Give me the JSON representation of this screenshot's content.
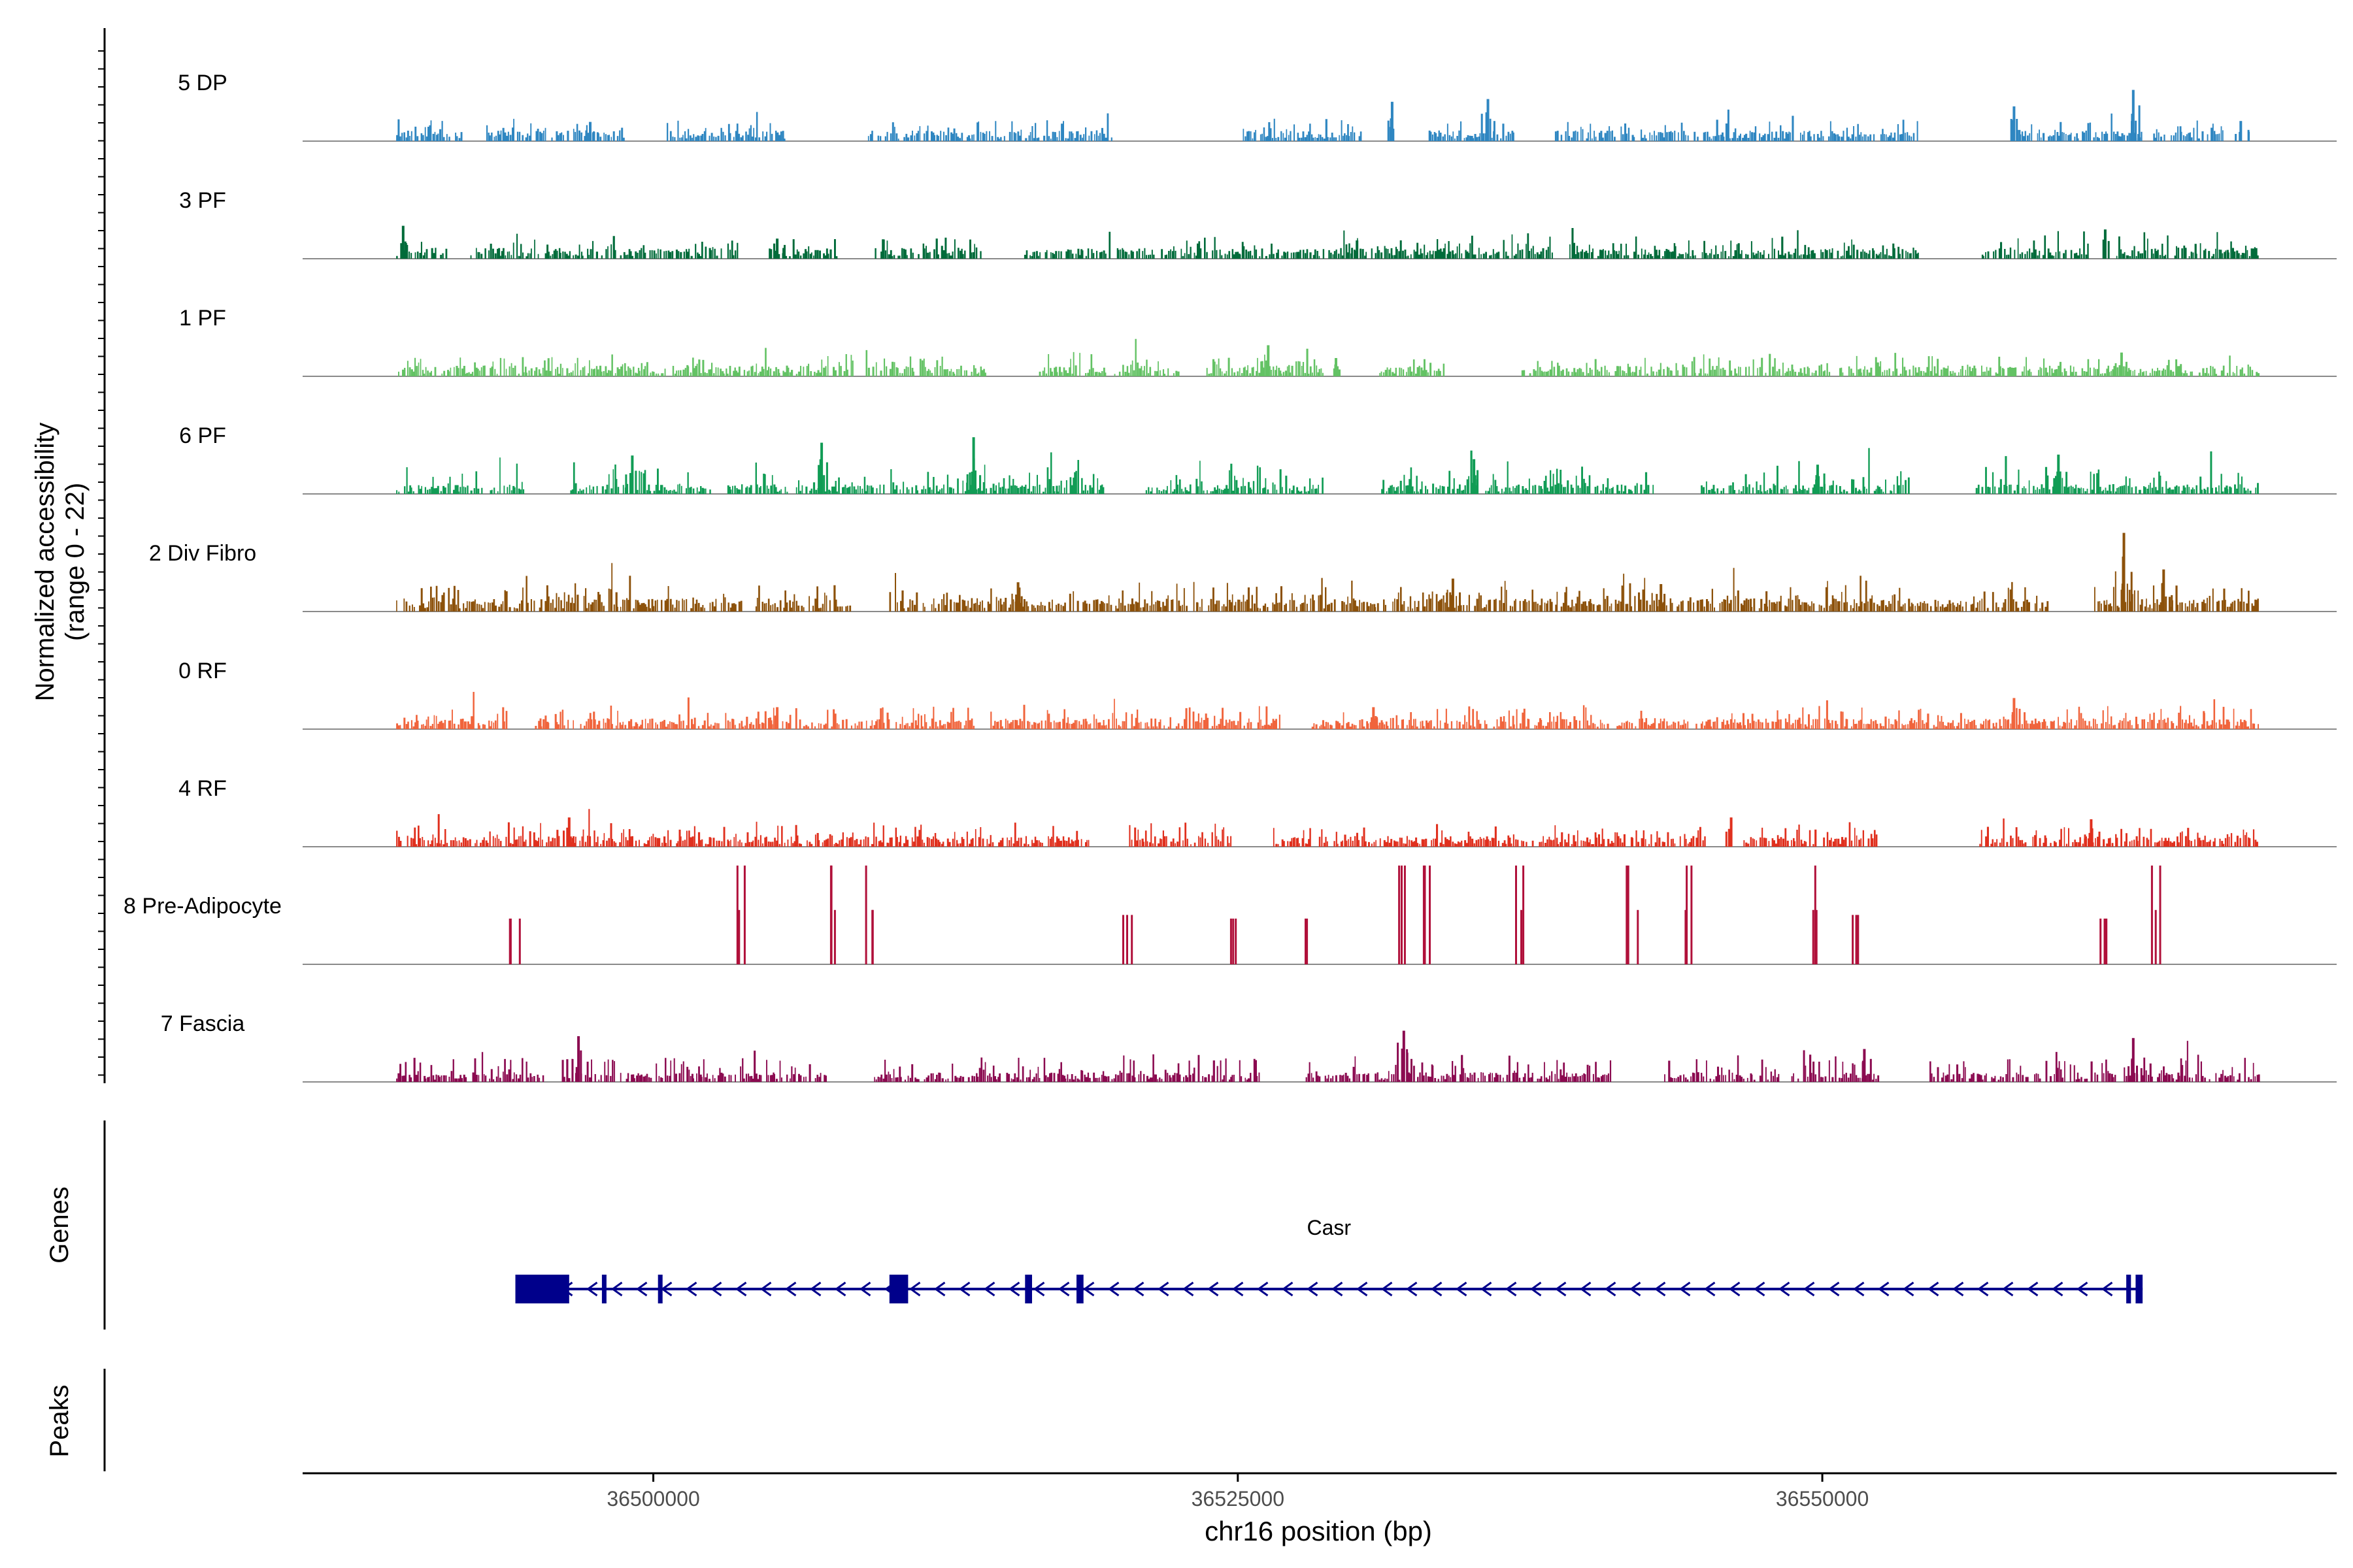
{
  "chart_data": {
    "type": "area",
    "title": "",
    "ylabel": [
      "Normalized accessibility",
      "(range 0 - 22)"
    ],
    "ylim": [
      0,
      22
    ],
    "xlabel": "chr16 position (bp)",
    "xlim": [
      36485000,
      36572000
    ],
    "x_ticks": [
      {
        "value": 36500000,
        "label": "36500000"
      },
      {
        "value": 36525000,
        "label": "36525000"
      },
      {
        "value": 36550000,
        "label": "36550000"
      }
    ],
    "data_range": [
      36489000,
      36573000
    ],
    "series": [
      {
        "name": "5 DP",
        "color": "#2E86C1",
        "profile": "sparse-low",
        "peaks": [
          {
            "x": 36497300,
            "y": 2.1
          },
          {
            "x": 36531600,
            "y": 4.3
          },
          {
            "x": 36535700,
            "y": 4.6
          },
          {
            "x": 36558200,
            "y": 3.8
          },
          {
            "x": 36563300,
            "y": 5.6
          },
          {
            "x": 36567900,
            "y": 2.2
          }
        ]
      },
      {
        "name": "3 PF",
        "color": "#006B3A",
        "profile": "dense-low",
        "peaks": [
          {
            "x": 36489300,
            "y": 3.6
          },
          {
            "x": 36505300,
            "y": 2.2
          },
          {
            "x": 36530100,
            "y": 2.0
          },
          {
            "x": 36562100,
            "y": 3.2
          }
        ]
      },
      {
        "name": "1 PF",
        "color": "#63C264",
        "profile": "dense-low",
        "peaks": [
          {
            "x": 36526300,
            "y": 3.4
          },
          {
            "x": 36529200,
            "y": 2.0
          },
          {
            "x": 36562800,
            "y": 2.6
          }
        ]
      },
      {
        "name": "6 PF",
        "color": "#119C55",
        "profile": "mixed",
        "peaks": [
          {
            "x": 36499100,
            "y": 4.2
          },
          {
            "x": 36507200,
            "y": 5.6
          },
          {
            "x": 36513700,
            "y": 6.2
          },
          {
            "x": 36535100,
            "y": 3.8
          },
          {
            "x": 36549800,
            "y": 3.2
          },
          {
            "x": 36560100,
            "y": 4.3
          }
        ]
      },
      {
        "name": "2 Div Fibro",
        "color": "#8C510A",
        "profile": "dense-mid",
        "peaks": [
          {
            "x": 36515600,
            "y": 3.2
          },
          {
            "x": 36534200,
            "y": 3.6
          },
          {
            "x": 36543100,
            "y": 3.0
          },
          {
            "x": 36562900,
            "y": 8.6
          },
          {
            "x": 36564600,
            "y": 4.6
          }
        ]
      },
      {
        "name": "0 RF",
        "color": "#F0643C",
        "profile": "dense-low",
        "peaks": [
          {
            "x": 36505300,
            "y": 2.4
          },
          {
            "x": 36530800,
            "y": 2.4
          },
          {
            "x": 36558200,
            "y": 3.4
          }
        ]
      },
      {
        "name": "4 RF",
        "color": "#E0301E",
        "profile": "dense-low",
        "peaks": [
          {
            "x": 36496400,
            "y": 3.2
          },
          {
            "x": 36546100,
            "y": 3.2
          },
          {
            "x": 36561500,
            "y": 3.0
          }
        ]
      },
      {
        "name": "8 Pre-Adipocyte",
        "color": "#B0103A",
        "profile": "spikes",
        "peaks": [
          {
            "x": 36493900,
            "y": 5.0
          },
          {
            "x": 36503600,
            "y": 10.8
          },
          {
            "x": 36507600,
            "y": 10.8
          },
          {
            "x": 36509100,
            "y": 10.8
          },
          {
            "x": 36520100,
            "y": 5.4
          },
          {
            "x": 36524800,
            "y": 5.0
          },
          {
            "x": 36527900,
            "y": 5.0
          },
          {
            "x": 36531900,
            "y": 10.8
          },
          {
            "x": 36533000,
            "y": 10.8
          },
          {
            "x": 36536900,
            "y": 10.8
          },
          {
            "x": 36541700,
            "y": 10.8
          },
          {
            "x": 36544200,
            "y": 10.8
          },
          {
            "x": 36549700,
            "y": 10.8
          },
          {
            "x": 36551300,
            "y": 5.4
          },
          {
            "x": 36561900,
            "y": 5.0
          },
          {
            "x": 36564100,
            "y": 10.8
          }
        ]
      },
      {
        "name": "7 Fascia",
        "color": "#8B0A50",
        "profile": "mixed",
        "peaks": [
          {
            "x": 36496800,
            "y": 5.0
          },
          {
            "x": 36532100,
            "y": 5.6
          },
          {
            "x": 36551800,
            "y": 3.6
          },
          {
            "x": 36563300,
            "y": 4.8
          }
        ]
      }
    ],
    "genes": {
      "label": "Genes",
      "color": "#00008B",
      "items": [
        {
          "name": "Casr",
          "strand": "-",
          "start": 36494100,
          "end": 36563700,
          "exons": [
            [
              36494100,
              36496400
            ],
            [
              36497800,
              36497900
            ],
            [
              36500200,
              36500300
            ],
            [
              36510100,
              36510900
            ],
            [
              36515900,
              36516200
            ],
            [
              36518100,
              36518400
            ],
            [
              36563000,
              36563200
            ],
            [
              36563400,
              36563700
            ]
          ]
        }
      ]
    },
    "peaks_track": {
      "label": "Peaks",
      "regions": []
    }
  }
}
